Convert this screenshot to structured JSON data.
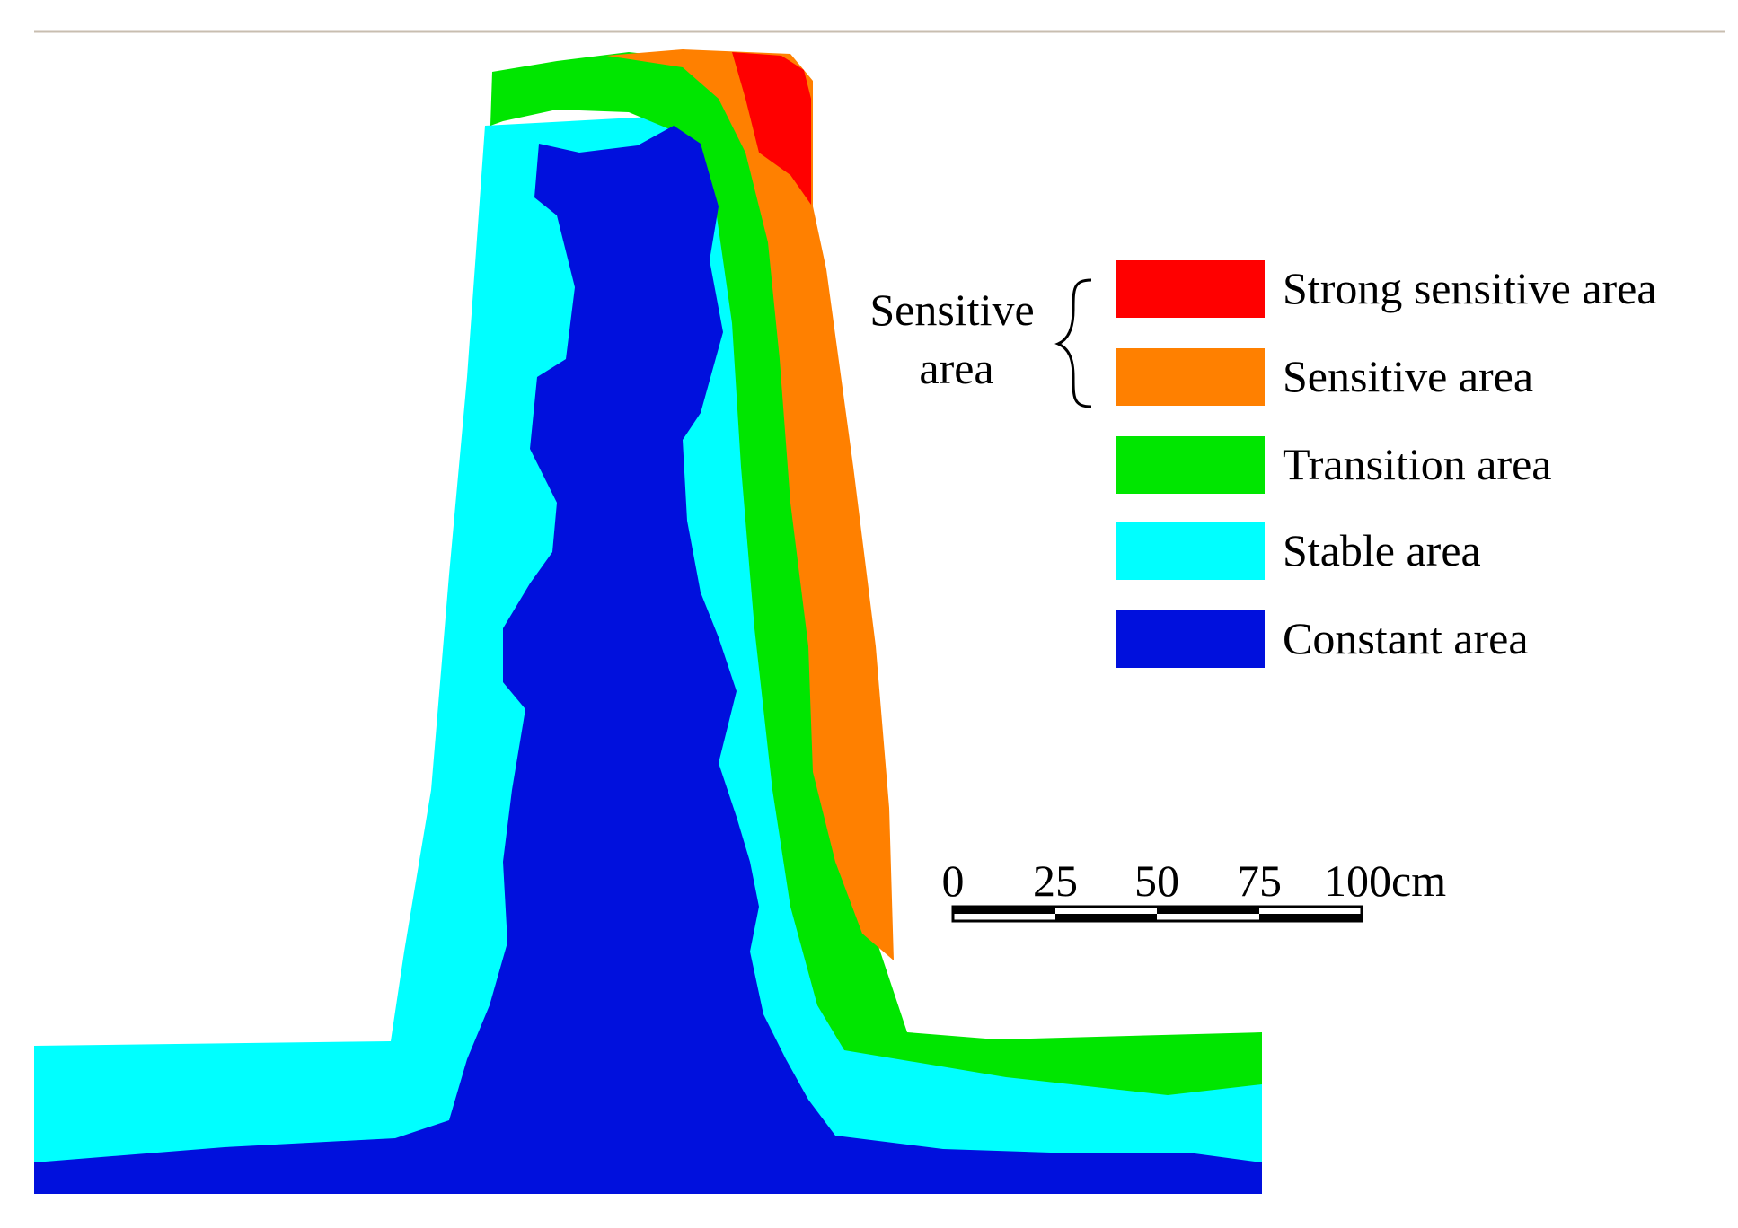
{
  "regions": [
    {
      "key": "strong_sensitive",
      "label": "Strong sensitive area",
      "color": "#ff0000"
    },
    {
      "key": "sensitive",
      "label": "Sensitive area",
      "color": "#ff8000"
    },
    {
      "key": "transition",
      "label": "Transition area",
      "color": "#00e600"
    },
    {
      "key": "stable",
      "label": "Stable area",
      "color": "#00ffff"
    },
    {
      "key": "constant",
      "label": "Constant area",
      "color": "#0010dd"
    }
  ],
  "legend": {
    "group_label_line1": "Sensitive",
    "group_label_line2": "area"
  },
  "scale_bar": {
    "ticks": [
      "0",
      "25",
      "50",
      "75",
      "100cm"
    ]
  },
  "colors": {
    "top_rule": "#c8beb0",
    "background": "#ffffff"
  }
}
